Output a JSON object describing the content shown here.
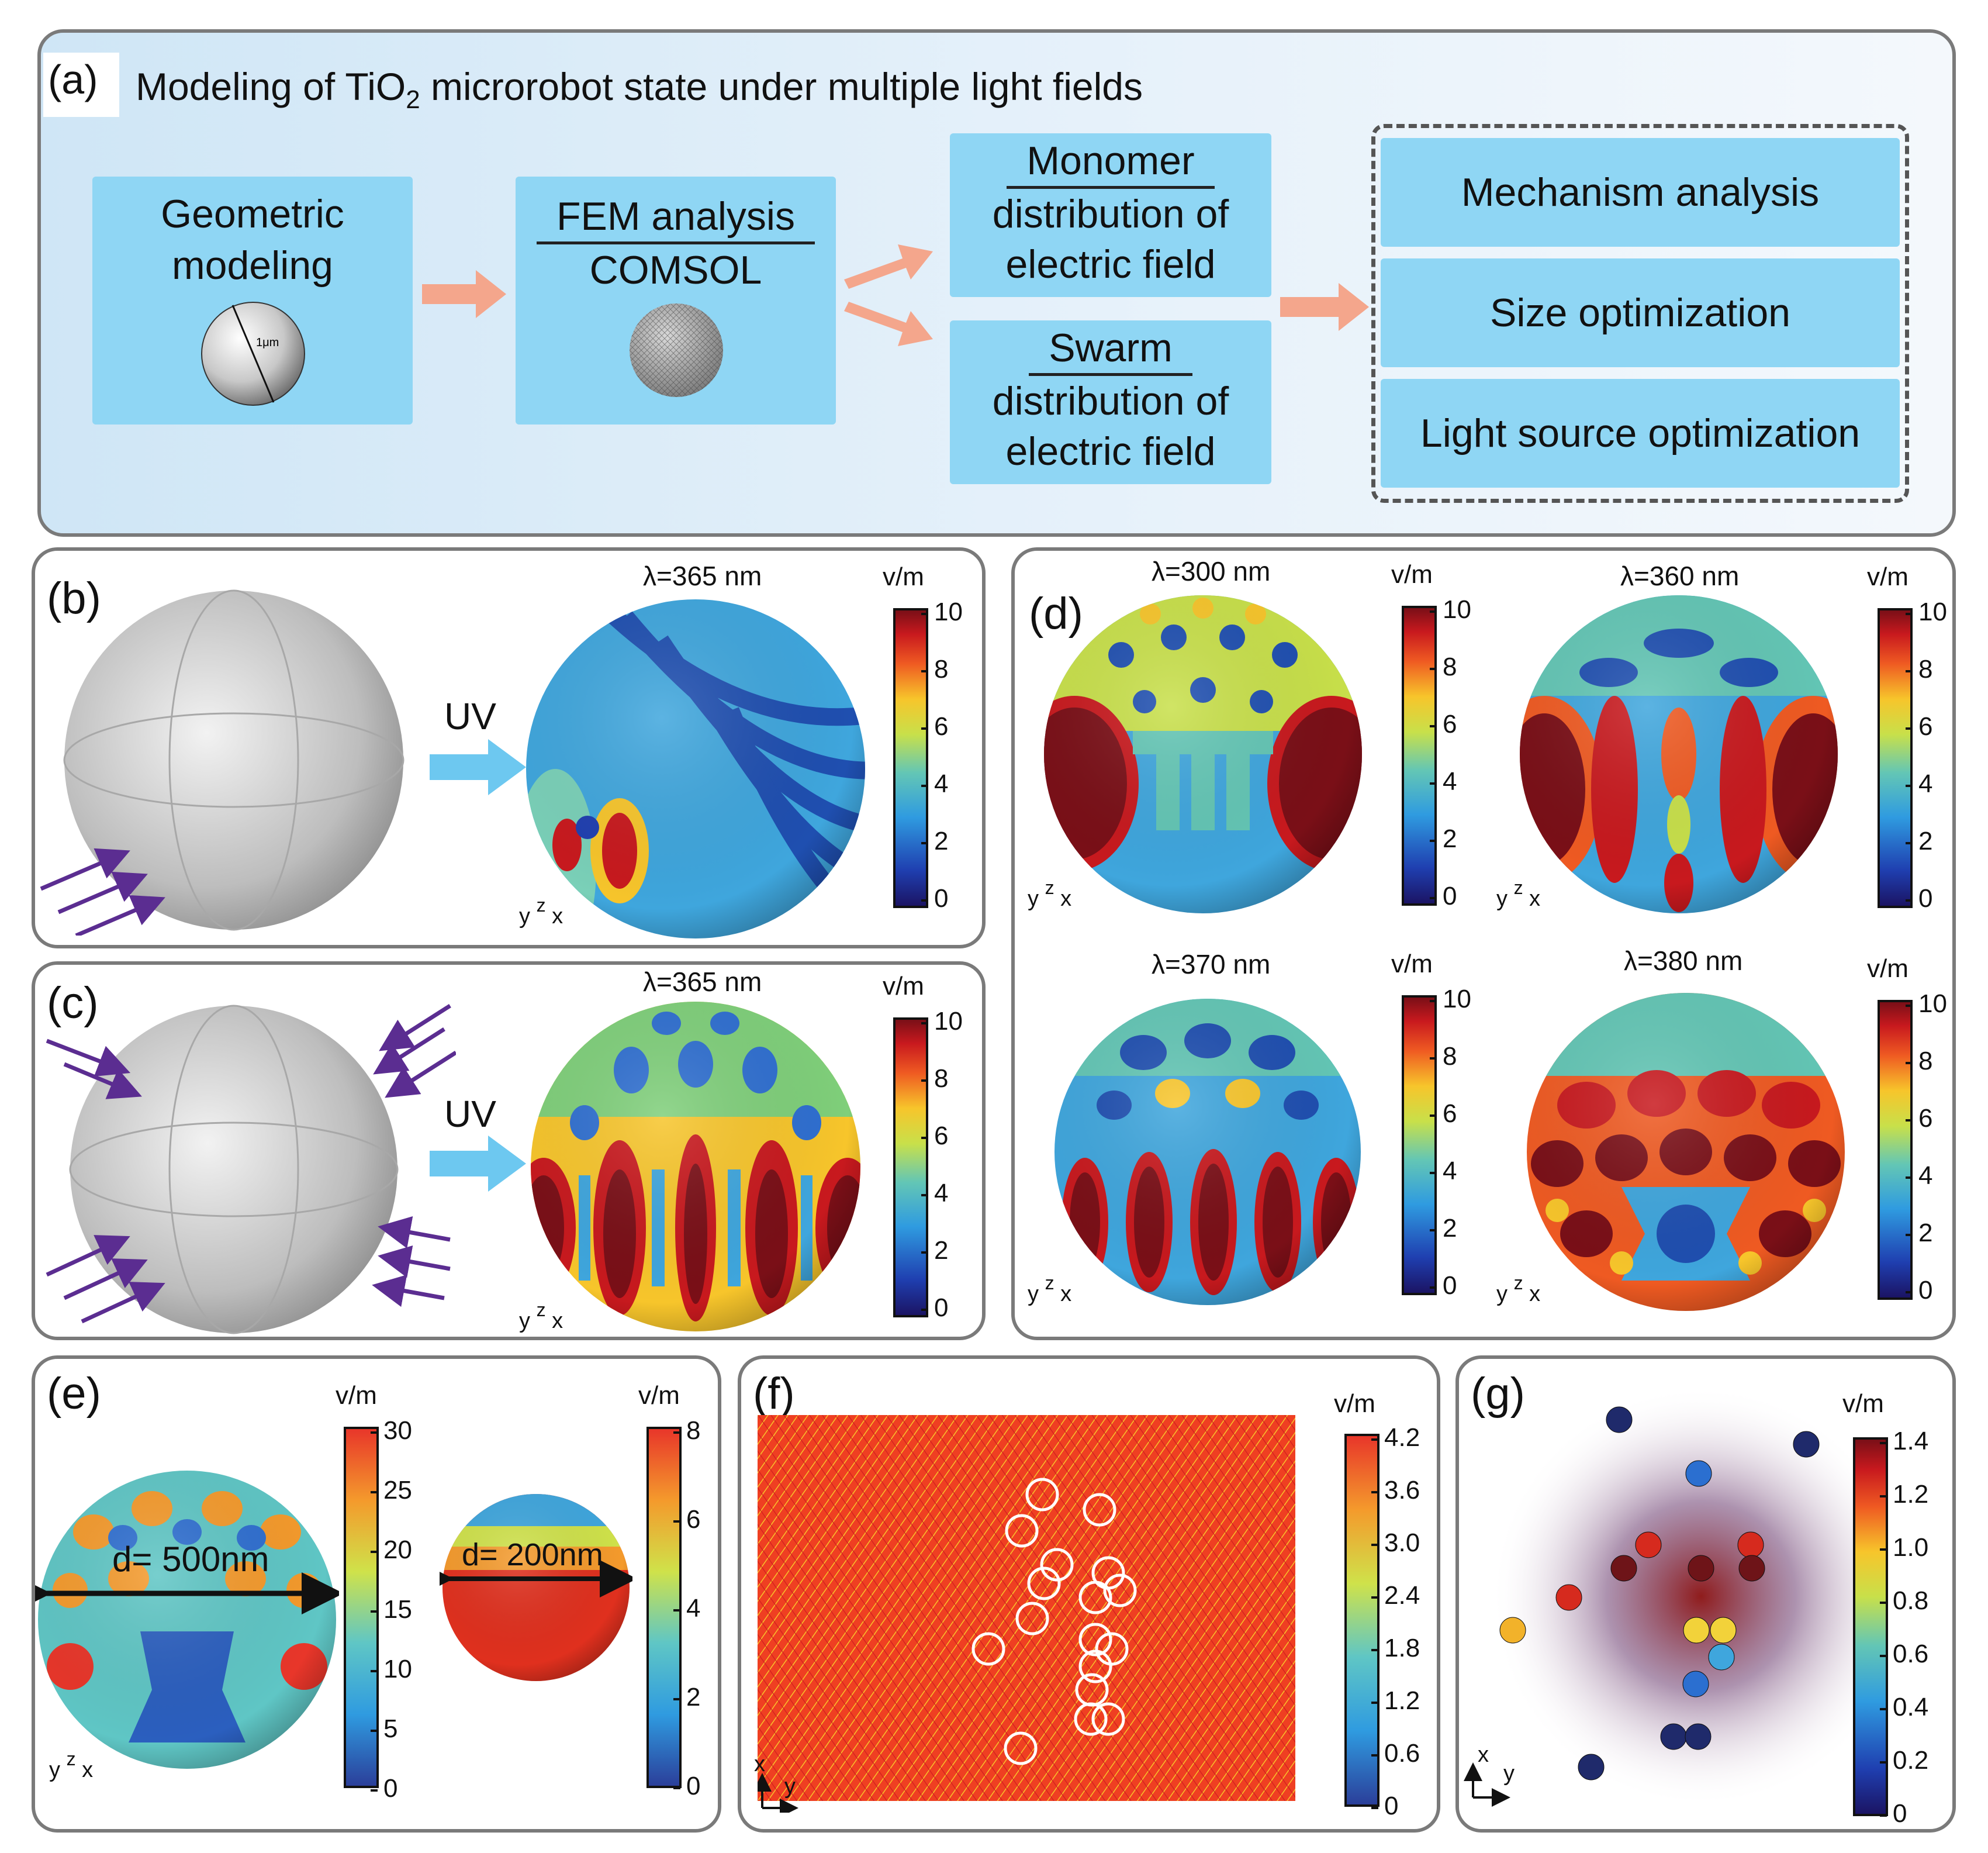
{
  "panel_a": {
    "label": "(a)",
    "title": "Modeling of TiO",
    "title_sub": "2",
    "title_rest": " microrobot state under multiple light fields",
    "box_geometric": [
      "Geometric",
      "modeling"
    ],
    "sphere_size_label": "1μm",
    "box_fem": {
      "top": "FEM analysis",
      "bottom": "COMSOL"
    },
    "box_monomer": {
      "top": "Monomer",
      "bottom": [
        "distribution of",
        "electric field"
      ]
    },
    "box_swarm": {
      "top": "Swarm",
      "bottom": [
        "distribution of",
        "electric field"
      ]
    },
    "outputs": [
      "Mechanism analysis",
      "Size optimization",
      "Light source optimization"
    ]
  },
  "panel_b": {
    "label": "(b)",
    "wavelength": "λ=365 nm",
    "uv_label": "UV",
    "unit": "v/m",
    "ticks": [
      "10",
      "8",
      "6",
      "4",
      "2",
      "0"
    ],
    "axes": [
      "y",
      "z",
      "x"
    ]
  },
  "panel_c": {
    "label": "(c)",
    "wavelength": "λ=365 nm",
    "uv_label": "UV",
    "unit": "v/m",
    "ticks": [
      "10",
      "8",
      "6",
      "4",
      "2",
      "0"
    ],
    "axes": [
      "y",
      "z",
      "x"
    ]
  },
  "panel_d": {
    "label": "(d)",
    "items": [
      {
        "wavelength": "λ=300 nm",
        "unit": "v/m",
        "ticks": [
          "10",
          "8",
          "6",
          "4",
          "2",
          "0"
        ]
      },
      {
        "wavelength": "λ=360 nm",
        "unit": "v/m",
        "ticks": [
          "10",
          "8",
          "6",
          "4",
          "2",
          "0"
        ]
      },
      {
        "wavelength": "λ=370 nm",
        "unit": "v/m",
        "ticks": [
          "10",
          "8",
          "6",
          "4",
          "2",
          "0"
        ]
      },
      {
        "wavelength": "λ=380 nm",
        "unit": "v/m",
        "ticks": [
          "10",
          "8",
          "6",
          "4",
          "2",
          "0"
        ]
      }
    ],
    "axes": [
      "y",
      "z",
      "x"
    ]
  },
  "panel_e": {
    "label": "(e)",
    "big_d": "d= 500nm",
    "small_d": "d= 200nm",
    "unit1": "v/m",
    "ticks1": [
      "30",
      "25",
      "20",
      "15",
      "10",
      "5",
      "0"
    ],
    "unit2": "v/m",
    "ticks2": [
      "8",
      "6",
      "4",
      "2",
      "0"
    ],
    "axes": [
      "y",
      "z",
      "x"
    ]
  },
  "panel_f": {
    "label": "(f)",
    "unit": "v/m",
    "ticks": [
      "4.2",
      "3.6",
      "3.0",
      "2.4",
      "1.8",
      "1.2",
      "0.6",
      "0"
    ],
    "axes": [
      "x",
      "y"
    ]
  },
  "panel_g": {
    "label": "(g)",
    "unit": "v/m",
    "ticks": [
      "1.4",
      "1.2",
      "1.0",
      "0.8",
      "0.6",
      "0.4",
      "0.2",
      "0"
    ],
    "axes": [
      "x",
      "y"
    ]
  }
}
